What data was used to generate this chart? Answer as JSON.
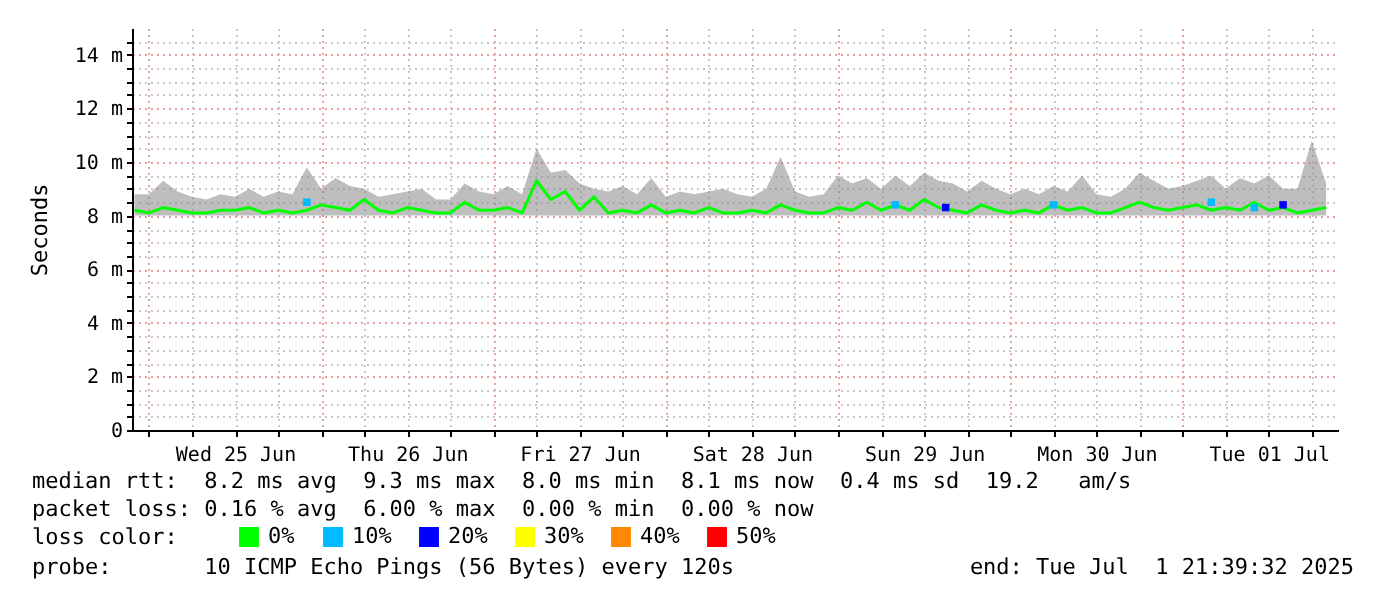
{
  "chart_data": {
    "type": "line",
    "ylabel": "Seconds",
    "legend_title": "loss color:",
    "legend": "bottom",
    "grid": true,
    "xlim": [
      "2025-06-24T21:39",
      "2025-07-01T21:39"
    ],
    "xticks": [
      {
        "value": "2025-06-25T00:00",
        "label": null
      },
      {
        "value": "2025-06-25T06:00",
        "label": null
      },
      {
        "value": "2025-06-25T12:00",
        "label": "Wed 25 Jun"
      },
      {
        "value": "2025-06-25T18:00",
        "label": null
      },
      {
        "value": "2025-06-26T00:00",
        "label": null
      },
      {
        "value": "2025-06-26T06:00",
        "label": null
      },
      {
        "value": "2025-06-26T12:00",
        "label": "Thu 26 Jun"
      },
      {
        "value": "2025-06-26T18:00",
        "label": null
      },
      {
        "value": "2025-06-27T00:00",
        "label": null
      },
      {
        "value": "2025-06-27T06:00",
        "label": null
      },
      {
        "value": "2025-06-27T12:00",
        "label": "Fri 27 Jun"
      },
      {
        "value": "2025-06-27T18:00",
        "label": null
      },
      {
        "value": "2025-06-28T00:00",
        "label": null
      },
      {
        "value": "2025-06-28T06:00",
        "label": null
      },
      {
        "value": "2025-06-28T12:00",
        "label": "Sat 28 Jun"
      },
      {
        "value": "2025-06-28T18:00",
        "label": null
      },
      {
        "value": "2025-06-29T00:00",
        "label": null
      },
      {
        "value": "2025-06-29T06:00",
        "label": null
      },
      {
        "value": "2025-06-29T12:00",
        "label": "Sun 29 Jun"
      },
      {
        "value": "2025-06-29T18:00",
        "label": null
      },
      {
        "value": "2025-06-30T00:00",
        "label": null
      },
      {
        "value": "2025-06-30T06:00",
        "label": null
      },
      {
        "value": "2025-06-30T12:00",
        "label": "Mon 30 Jun"
      },
      {
        "value": "2025-06-30T18:00",
        "label": null
      },
      {
        "value": "2025-07-01T00:00",
        "label": null
      },
      {
        "value": "2025-07-01T06:00",
        "label": null
      },
      {
        "value": "2025-07-01T12:00",
        "label": "Tue 01 Jul"
      },
      {
        "value": "2025-07-01T18:00",
        "label": null
      }
    ],
    "ylim": [
      0,
      15
    ],
    "yticks": [
      0,
      {
        "value": 0.5,
        "label": null
      },
      {
        "value": 1,
        "label": null
      },
      {
        "value": 1.5,
        "label": null
      },
      {
        "value": 2,
        "label": "2 m"
      },
      {
        "value": 2.5,
        "label": null
      },
      {
        "value": 3,
        "label": null
      },
      {
        "value": 3.5,
        "label": null
      },
      {
        "value": 4,
        "label": "4 m"
      },
      {
        "value": 4.5,
        "label": null
      },
      {
        "value": 5,
        "label": null
      },
      {
        "value": 5.5,
        "label": null
      },
      {
        "value": 6,
        "label": "6 m"
      },
      {
        "value": 6.5,
        "label": null
      },
      {
        "value": 7,
        "label": null
      },
      {
        "value": 7.5,
        "label": null
      },
      {
        "value": 8,
        "label": "8 m"
      },
      {
        "value": 8.5,
        "label": null
      },
      {
        "value": 9,
        "label": null
      },
      {
        "value": 9.5,
        "label": null
      },
      {
        "value": 10,
        "label": "10 m"
      },
      {
        "value": 10.5,
        "label": null
      },
      {
        "value": 11,
        "label": null
      },
      {
        "value": 11.5,
        "label": null
      },
      {
        "value": 12,
        "label": "12 m"
      },
      {
        "value": 12.5,
        "label": null
      },
      {
        "value": 13,
        "label": null
      },
      {
        "value": 13.5,
        "label": null
      },
      {
        "value": 14,
        "label": "14 m"
      },
      {
        "value": 14.5,
        "label": null
      }
    ],
    "x": [
      "2025-06-24T22:00",
      "2025-06-25T00:00",
      "2025-06-25T02:00",
      "2025-06-25T04:00",
      "2025-06-25T06:00",
      "2025-06-25T08:00",
      "2025-06-25T10:00",
      "2025-06-25T12:00",
      "2025-06-25T14:00",
      "2025-06-25T16:00",
      "2025-06-25T18:00",
      "2025-06-25T20:00",
      "2025-06-25T22:00",
      "2025-06-26T00:00",
      "2025-06-26T02:00",
      "2025-06-26T04:00",
      "2025-06-26T06:00",
      "2025-06-26T08:00",
      "2025-06-26T10:00",
      "2025-06-26T12:00",
      "2025-06-26T14:00",
      "2025-06-26T16:00",
      "2025-06-26T18:00",
      "2025-06-26T20:00",
      "2025-06-26T22:00",
      "2025-06-27T00:00",
      "2025-06-27T02:00",
      "2025-06-27T04:00",
      "2025-06-27T06:00",
      "2025-06-27T08:00",
      "2025-06-27T10:00",
      "2025-06-27T12:00",
      "2025-06-27T14:00",
      "2025-06-27T16:00",
      "2025-06-27T18:00",
      "2025-06-27T20:00",
      "2025-06-27T22:00",
      "2025-06-28T00:00",
      "2025-06-28T02:00",
      "2025-06-28T04:00",
      "2025-06-28T06:00",
      "2025-06-28T08:00",
      "2025-06-28T10:00",
      "2025-06-28T12:00",
      "2025-06-28T14:00",
      "2025-06-28T16:00",
      "2025-06-28T18:00",
      "2025-06-28T20:00",
      "2025-06-28T22:00",
      "2025-06-29T00:00",
      "2025-06-29T02:00",
      "2025-06-29T04:00",
      "2025-06-29T06:00",
      "2025-06-29T08:00",
      "2025-06-29T10:00",
      "2025-06-29T12:00",
      "2025-06-29T14:00",
      "2025-06-29T16:00",
      "2025-06-29T18:00",
      "2025-06-29T20:00",
      "2025-06-29T22:00",
      "2025-06-30T00:00",
      "2025-06-30T02:00",
      "2025-06-30T04:00",
      "2025-06-30T06:00",
      "2025-06-30T08:00",
      "2025-06-30T10:00",
      "2025-06-30T12:00",
      "2025-06-30T14:00",
      "2025-06-30T16:00",
      "2025-06-30T18:00",
      "2025-06-30T20:00",
      "2025-06-30T22:00",
      "2025-07-01T00:00",
      "2025-07-01T02:00",
      "2025-07-01T04:00",
      "2025-07-01T06:00",
      "2025-07-01T08:00",
      "2025-07-01T10:00",
      "2025-07-01T12:00",
      "2025-07-01T14:00",
      "2025-07-01T16:00",
      "2025-07-01T18:00",
      "2025-07-01T20:00"
    ],
    "series": [
      {
        "name": "0%",
        "color": "#00ff00",
        "values": [
          8.2,
          8.1,
          8.3,
          8.2,
          8.1,
          8.1,
          8.2,
          8.2,
          8.3,
          8.1,
          8.2,
          8.1,
          8.2,
          8.4,
          8.3,
          8.2,
          8.6,
          8.2,
          8.1,
          8.3,
          8.2,
          8.1,
          8.1,
          8.5,
          8.2,
          8.2,
          8.3,
          8.1,
          9.3,
          8.6,
          8.9,
          8.2,
          8.7,
          8.1,
          8.2,
          8.1,
          8.4,
          8.1,
          8.2,
          8.1,
          8.3,
          8.1,
          8.1,
          8.2,
          8.1,
          8.4,
          8.2,
          8.1,
          8.1,
          8.3,
          8.2,
          8.5,
          8.2,
          8.4,
          8.2,
          8.6,
          8.3,
          8.2,
          8.1,
          8.4,
          8.2,
          8.1,
          8.2,
          8.1,
          8.4,
          8.2,
          8.3,
          8.1,
          8.1,
          8.3,
          8.5,
          8.3,
          8.2,
          8.3,
          8.4,
          8.2,
          8.3,
          8.2,
          8.5,
          8.2,
          8.3,
          8.1,
          8.2,
          8.3
        ],
        "lower": [
          8.0,
          8.0,
          8.0,
          8.0,
          8.0,
          8.0,
          8.0,
          8.0,
          8.0,
          8.0,
          8.0,
          8.0,
          8.0,
          8.0,
          8.0,
          8.0,
          8.0,
          8.0,
          8.0,
          8.0,
          8.0,
          8.0,
          8.0,
          8.0,
          8.0,
          8.0,
          8.0,
          8.0,
          8.0,
          8.0,
          8.0,
          8.0,
          8.0,
          8.0,
          8.0,
          8.0,
          8.0,
          8.0,
          8.0,
          8.0,
          8.0,
          8.0,
          8.0,
          8.0,
          8.0,
          8.0,
          8.0,
          8.0,
          8.0,
          8.0,
          8.0,
          8.0,
          8.0,
          8.0,
          8.0,
          8.0,
          8.0,
          8.0,
          8.0,
          8.0,
          8.0,
          8.0,
          8.0,
          8.0,
          8.0,
          8.0,
          8.0,
          8.0,
          8.0,
          8.0,
          8.0,
          8.0,
          8.0,
          8.0,
          8.0,
          8.0,
          8.0,
          8.0,
          8.0,
          8.0,
          8.0,
          8.0,
          8.0,
          8.0
        ],
        "upper": [
          8.8,
          8.8,
          9.3,
          8.9,
          8.7,
          8.6,
          8.8,
          8.7,
          9.0,
          8.7,
          8.9,
          8.8,
          9.8,
          9.0,
          9.4,
          9.1,
          9.0,
          8.7,
          8.8,
          8.9,
          9.0,
          8.6,
          8.6,
          9.2,
          8.9,
          8.8,
          9.1,
          8.8,
          10.5,
          9.6,
          9.7,
          9.2,
          9.0,
          8.9,
          9.1,
          8.8,
          9.4,
          8.7,
          8.9,
          8.8,
          8.9,
          9.0,
          8.8,
          8.7,
          9.0,
          10.2,
          8.9,
          8.7,
          8.8,
          9.5,
          9.2,
          9.4,
          9.0,
          9.5,
          9.1,
          9.6,
          9.3,
          9.2,
          8.9,
          9.3,
          9.0,
          8.8,
          9.0,
          8.8,
          9.1,
          8.9,
          9.5,
          8.8,
          8.7,
          9.0,
          9.6,
          9.3,
          9.0,
          9.1,
          9.3,
          9.5,
          9.0,
          9.4,
          9.2,
          9.5,
          9.0,
          9.0,
          10.8,
          9.2
        ]
      },
      {
        "name": "10%",
        "color": "#00bbff",
        "type": "scatter",
        "x": [
          "2025-06-25T22:00",
          "2025-06-29T08:00",
          "2025-06-30T06:00",
          "2025-07-01T04:00",
          "2025-07-01T10:00"
        ],
        "values": [
          8.5,
          8.4,
          8.4,
          8.5,
          8.3
        ]
      },
      {
        "name": "20%",
        "color": "#0000ff",
        "type": "scatter",
        "x": [
          "2025-06-29T15:00",
          "2025-07-01T14:00"
        ],
        "values": [
          8.3,
          8.4
        ]
      },
      {
        "name": "30%",
        "color": "#ffff00",
        "type": "scatter",
        "values": [
          null,
          null,
          null,
          null,
          null,
          null,
          null,
          null,
          null,
          null,
          null,
          null,
          null,
          null,
          null,
          null,
          null,
          null,
          null,
          null,
          null,
          null,
          null,
          null,
          null,
          null,
          null,
          null,
          null,
          null,
          null,
          null,
          null,
          null,
          null,
          null,
          null,
          null,
          null,
          null,
          null,
          null,
          null,
          null,
          null,
          null,
          null,
          null,
          null,
          null,
          null,
          null,
          null,
          null,
          null,
          null,
          null,
          null,
          null,
          null,
          null,
          null,
          null,
          null,
          null,
          null,
          null,
          null,
          null,
          null,
          null,
          null,
          null,
          null,
          null,
          null,
          null,
          null,
          null,
          null,
          null,
          null,
          null,
          null
        ]
      },
      {
        "name": "40%",
        "color": "#ff8800",
        "type": "scatter",
        "values": [
          null,
          null,
          null,
          null,
          null,
          null,
          null,
          null,
          null,
          null,
          null,
          null,
          null,
          null,
          null,
          null,
          null,
          null,
          null,
          null,
          null,
          null,
          null,
          null,
          null,
          null,
          null,
          null,
          null,
          null,
          null,
          null,
          null,
          null,
          null,
          null,
          null,
          null,
          null,
          null,
          null,
          null,
          null,
          null,
          null,
          null,
          null,
          null,
          null,
          null,
          null,
          null,
          null,
          null,
          null,
          null,
          null,
          null,
          null,
          null,
          null,
          null,
          null,
          null,
          null,
          null,
          null,
          null,
          null,
          null,
          null,
          null,
          null,
          null,
          null,
          null,
          null,
          null,
          null,
          null,
          null,
          null,
          null,
          null
        ]
      },
      {
        "name": "50%",
        "color": "#ff0000",
        "type": "scatter",
        "values": [
          null,
          null,
          null,
          null,
          null,
          null,
          null,
          null,
          null,
          null,
          null,
          null,
          null,
          null,
          null,
          null,
          null,
          null,
          null,
          null,
          null,
          null,
          null,
          null,
          null,
          null,
          null,
          null,
          null,
          null,
          null,
          null,
          null,
          null,
          null,
          null,
          null,
          null,
          null,
          null,
          null,
          null,
          null,
          null,
          null,
          null,
          null,
          null,
          null,
          null,
          null,
          null,
          null,
          null,
          null,
          null,
          null,
          null,
          null,
          null,
          null,
          null,
          null,
          null,
          null,
          null,
          null,
          null,
          null,
          null,
          null,
          null,
          null,
          null,
          null,
          null,
          null,
          null,
          null,
          null,
          null,
          null,
          null,
          null
        ]
      }
    ],
    "annotations": [
      "median rtt:  8.2 ms avg  9.3 ms max  8.0 ms min  8.1 ms now  0.4 ms sd  19.2   am/s",
      "packet loss: 0.16 % avg  6.00 % max  0.00 % min  0.00 % now",
      "probe:       10 ICMP Echo Pings (56 Bytes) every 120s",
      "end: Tue Jul  1 21:39:32 2025"
    ]
  }
}
